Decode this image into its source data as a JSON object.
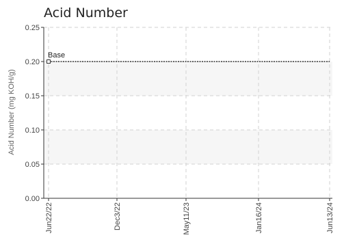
{
  "chart_data": {
    "type": "line",
    "title": "Acid Number",
    "xlabel": "",
    "ylabel": "Acid Number (mg KOH/g)",
    "x": [
      "Jun22/22",
      "Dec3/22",
      "May11/23",
      "Jan16/24",
      "Jun13/24"
    ],
    "ylim": [
      0,
      0.25
    ],
    "yticks": [
      "0.00",
      "0.05",
      "0.10",
      "0.15",
      "0.20",
      "0.25"
    ],
    "grid": true,
    "series": [
      {
        "name": "",
        "points": [
          {
            "x": "Jun22/22",
            "y": 0.2,
            "label": "Base"
          }
        ]
      }
    ],
    "reference_line": {
      "y": 0.2,
      "style": "dotted"
    },
    "bands": [
      {
        "from": 0.05,
        "to": 0.1
      },
      {
        "from": 0.15,
        "to": 0.2
      }
    ]
  },
  "colors": {
    "band": "#f6f6f6",
    "grid": "#d2d2d2",
    "line": "#333333"
  }
}
